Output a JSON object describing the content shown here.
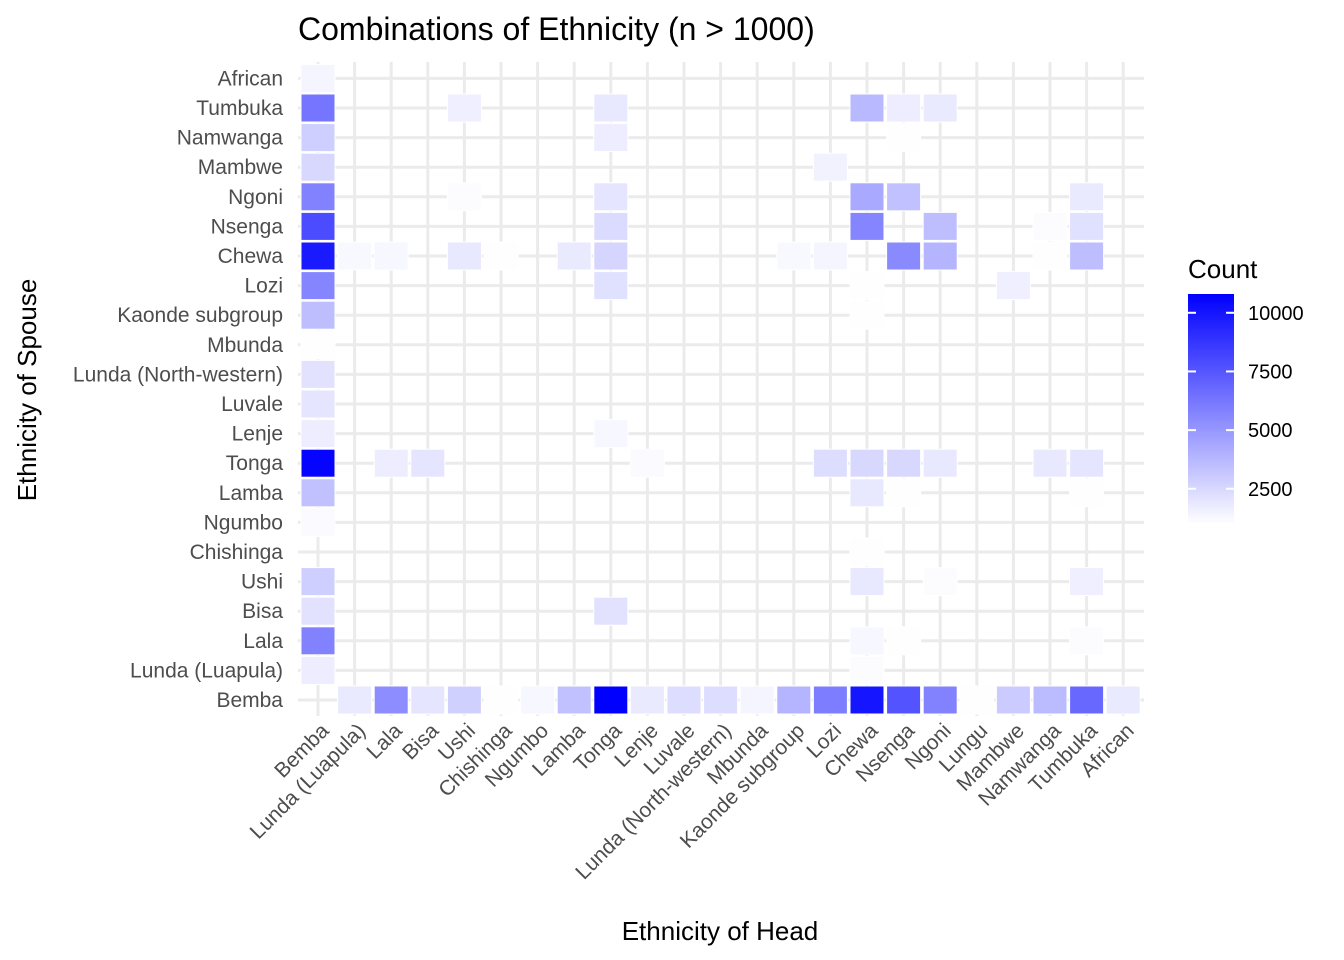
{
  "chart_data": {
    "type": "heatmap",
    "title": "Combinations of Ethnicity (n > 1000)",
    "xlabel": "Ethnicity of Head",
    "ylabel": "Ethnicity of Spouse",
    "x_categories": [
      "Bemba",
      "Lunda (Luapula)",
      "Lala",
      "Bisa",
      "Ushi",
      "Chishinga",
      "Ngumbo",
      "Lamba",
      "Tonga",
      "Lenje",
      "Luvale",
      "Lunda (North-western)",
      "Mbunda",
      "Kaonde subgroup",
      "Lozi",
      "Chewa",
      "Nsenga",
      "Ngoni",
      "Lungu",
      "Mambwe",
      "Namwanga",
      "Tumbuka",
      "African"
    ],
    "y_categories": [
      "Bemba",
      "Lunda (Luapula)",
      "Lala",
      "Bisa",
      "Ushi",
      "Chishinga",
      "Ngumbo",
      "Lamba",
      "Tonga",
      "Lenje",
      "Luvale",
      "Lunda (North-western)",
      "Mbunda",
      "Kaonde subgroup",
      "Lozi",
      "Chewa",
      "Nsenga",
      "Ngoni",
      "Mambwe",
      "Namwanga",
      "Tumbuka",
      "African"
    ],
    "legend": {
      "title": "Count",
      "ticks": [
        2500,
        5000,
        7500,
        10000
      ],
      "range": [
        1000,
        10800
      ],
      "low_color": "#ffffff",
      "high_color": "#0000ff",
      "placement": "right"
    },
    "grid": true,
    "cells": [
      {
        "x": "Lunda (Luapula)",
        "y": "Bemba",
        "value": 1800
      },
      {
        "x": "Lala",
        "y": "Bemba",
        "value": 5400
      },
      {
        "x": "Bisa",
        "y": "Bemba",
        "value": 2000
      },
      {
        "x": "Ushi",
        "y": "Bemba",
        "value": 2800
      },
      {
        "x": "Chishinga",
        "y": "Bemba",
        "value": 1050
      },
      {
        "x": "Ngumbo",
        "y": "Bemba",
        "value": 1300
      },
      {
        "x": "Lamba",
        "y": "Bemba",
        "value": 3400
      },
      {
        "x": "Tonga",
        "y": "Bemba",
        "value": 10800
      },
      {
        "x": "Lenje",
        "y": "Bemba",
        "value": 1800
      },
      {
        "x": "Luvale",
        "y": "Bemba",
        "value": 2300
      },
      {
        "x": "Lunda (North-western)",
        "y": "Bemba",
        "value": 2300
      },
      {
        "x": "Mbunda",
        "y": "Bemba",
        "value": 1400
      },
      {
        "x": "Kaonde subgroup",
        "y": "Bemba",
        "value": 3900
      },
      {
        "x": "Lozi",
        "y": "Bemba",
        "value": 6000
      },
      {
        "x": "Chewa",
        "y": "Bemba",
        "value": 10000
      },
      {
        "x": "Nsenga",
        "y": "Bemba",
        "value": 7600
      },
      {
        "x": "Ngoni",
        "y": "Bemba",
        "value": 5800
      },
      {
        "x": "Lungu",
        "y": "Bemba",
        "value": 1050
      },
      {
        "x": "Mambwe",
        "y": "Bemba",
        "value": 3000
      },
      {
        "x": "Namwanga",
        "y": "Bemba",
        "value": 3600
      },
      {
        "x": "Tumbuka",
        "y": "Bemba",
        "value": 6800
      },
      {
        "x": "African",
        "y": "Bemba",
        "value": 1800
      },
      {
        "x": "Bemba",
        "y": "Lunda (Luapula)",
        "value": 1700
      },
      {
        "x": "Chewa",
        "y": "Lunda (Luapula)",
        "value": 1100
      },
      {
        "x": "Bemba",
        "y": "Lala",
        "value": 5800
      },
      {
        "x": "Chewa",
        "y": "Lala",
        "value": 1300
      },
      {
        "x": "Nsenga",
        "y": "Lala",
        "value": 1050
      },
      {
        "x": "Tumbuka",
        "y": "Lala",
        "value": 1100
      },
      {
        "x": "Bemba",
        "y": "Bisa",
        "value": 2100
      },
      {
        "x": "Tonga",
        "y": "Bisa",
        "value": 2100
      },
      {
        "x": "Bemba",
        "y": "Ushi",
        "value": 2900
      },
      {
        "x": "Chewa",
        "y": "Ushi",
        "value": 1900
      },
      {
        "x": "Ngoni",
        "y": "Ushi",
        "value": 1100
      },
      {
        "x": "Tumbuka",
        "y": "Ushi",
        "value": 1600
      },
      {
        "x": "Chewa",
        "y": "Chishinga",
        "value": 1050
      },
      {
        "x": "Bemba",
        "y": "Ngumbo",
        "value": 1200
      },
      {
        "x": "Bemba",
        "y": "Lamba",
        "value": 3400
      },
      {
        "x": "Chewa",
        "y": "Lamba",
        "value": 1900
      },
      {
        "x": "Nsenga",
        "y": "Lamba",
        "value": 1050
      },
      {
        "x": "Tumbuka",
        "y": "Lamba",
        "value": 1050
      },
      {
        "x": "Bemba",
        "y": "Tonga",
        "value": 10600
      },
      {
        "x": "Lala",
        "y": "Tonga",
        "value": 1700
      },
      {
        "x": "Bisa",
        "y": "Tonga",
        "value": 2000
      },
      {
        "x": "Lenje",
        "y": "Tonga",
        "value": 1200
      },
      {
        "x": "Lozi",
        "y": "Tonga",
        "value": 2300
      },
      {
        "x": "Chewa",
        "y": "Tonga",
        "value": 2500
      },
      {
        "x": "Nsenga",
        "y": "Tonga",
        "value": 2500
      },
      {
        "x": "Ngoni",
        "y": "Tonga",
        "value": 1900
      },
      {
        "x": "Namwanga",
        "y": "Tonga",
        "value": 1900
      },
      {
        "x": "Tumbuka",
        "y": "Tonga",
        "value": 2000
      },
      {
        "x": "Bemba",
        "y": "Lenje",
        "value": 1700
      },
      {
        "x": "Tonga",
        "y": "Lenje",
        "value": 1300
      },
      {
        "x": "Bemba",
        "y": "Luvale",
        "value": 2000
      },
      {
        "x": "Bemba",
        "y": "Lunda (North-western)",
        "value": 2100
      },
      {
        "x": "Bemba",
        "y": "Mbunda",
        "value": 1050
      },
      {
        "x": "Bemba",
        "y": "Kaonde subgroup",
        "value": 3500
      },
      {
        "x": "Chewa",
        "y": "Kaonde subgroup",
        "value": 1050
      },
      {
        "x": "Bemba",
        "y": "Lozi",
        "value": 5700
      },
      {
        "x": "Tonga",
        "y": "Lozi",
        "value": 2200
      },
      {
        "x": "Chewa",
        "y": "Lozi",
        "value": 1050
      },
      {
        "x": "Mambwe",
        "y": "Lozi",
        "value": 1600
      },
      {
        "x": "Bemba",
        "y": "Chewa",
        "value": 9800
      },
      {
        "x": "Lunda (Luapula)",
        "y": "Chewa",
        "value": 1250
      },
      {
        "x": "Lala",
        "y": "Chewa",
        "value": 1300
      },
      {
        "x": "Ushi",
        "y": "Chewa",
        "value": 1900
      },
      {
        "x": "Chishinga",
        "y": "Chewa",
        "value": 1050
      },
      {
        "x": "Lamba",
        "y": "Chewa",
        "value": 1800
      },
      {
        "x": "Tonga",
        "y": "Chewa",
        "value": 2600
      },
      {
        "x": "Kaonde subgroup",
        "y": "Chewa",
        "value": 1250
      },
      {
        "x": "Lozi",
        "y": "Chewa",
        "value": 1400
      },
      {
        "x": "Nsenga",
        "y": "Chewa",
        "value": 5500
      },
      {
        "x": "Ngoni",
        "y": "Chewa",
        "value": 3900
      },
      {
        "x": "Namwanga",
        "y": "Chewa",
        "value": 1050
      },
      {
        "x": "Tumbuka",
        "y": "Chewa",
        "value": 3500
      },
      {
        "x": "Bemba",
        "y": "Nsenga",
        "value": 7900
      },
      {
        "x": "Tonga",
        "y": "Nsenga",
        "value": 2400
      },
      {
        "x": "Chewa",
        "y": "Nsenga",
        "value": 5700
      },
      {
        "x": "Ngoni",
        "y": "Nsenga",
        "value": 3500
      },
      {
        "x": "Namwanga",
        "y": "Nsenga",
        "value": 1100
      },
      {
        "x": "Tumbuka",
        "y": "Nsenga",
        "value": 2200
      },
      {
        "x": "Bemba",
        "y": "Ngoni",
        "value": 5800
      },
      {
        "x": "Ushi",
        "y": "Ngoni",
        "value": 1100
      },
      {
        "x": "Tonga",
        "y": "Ngoni",
        "value": 2000
      },
      {
        "x": "Chewa",
        "y": "Ngoni",
        "value": 4300
      },
      {
        "x": "Nsenga",
        "y": "Ngoni",
        "value": 3400
      },
      {
        "x": "Tumbuka",
        "y": "Ngoni",
        "value": 1800
      },
      {
        "x": "Bemba",
        "y": "Mambwe",
        "value": 2500
      },
      {
        "x": "Lozi",
        "y": "Mambwe",
        "value": 1500
      },
      {
        "x": "Bemba",
        "y": "Namwanga",
        "value": 2900
      },
      {
        "x": "Tonga",
        "y": "Namwanga",
        "value": 1700
      },
      {
        "x": "Nsenga",
        "y": "Namwanga",
        "value": 1050
      },
      {
        "x": "Bemba",
        "y": "Tumbuka",
        "value": 6300
      },
      {
        "x": "Ushi",
        "y": "Tumbuka",
        "value": 1600
      },
      {
        "x": "Tonga",
        "y": "Tumbuka",
        "value": 1900
      },
      {
        "x": "Chewa",
        "y": "Tumbuka",
        "value": 3700
      },
      {
        "x": "Nsenga",
        "y": "Tumbuka",
        "value": 1700
      },
      {
        "x": "Ngoni",
        "y": "Tumbuka",
        "value": 1800
      },
      {
        "x": "Bemba",
        "y": "African",
        "value": 1400
      }
    ]
  }
}
